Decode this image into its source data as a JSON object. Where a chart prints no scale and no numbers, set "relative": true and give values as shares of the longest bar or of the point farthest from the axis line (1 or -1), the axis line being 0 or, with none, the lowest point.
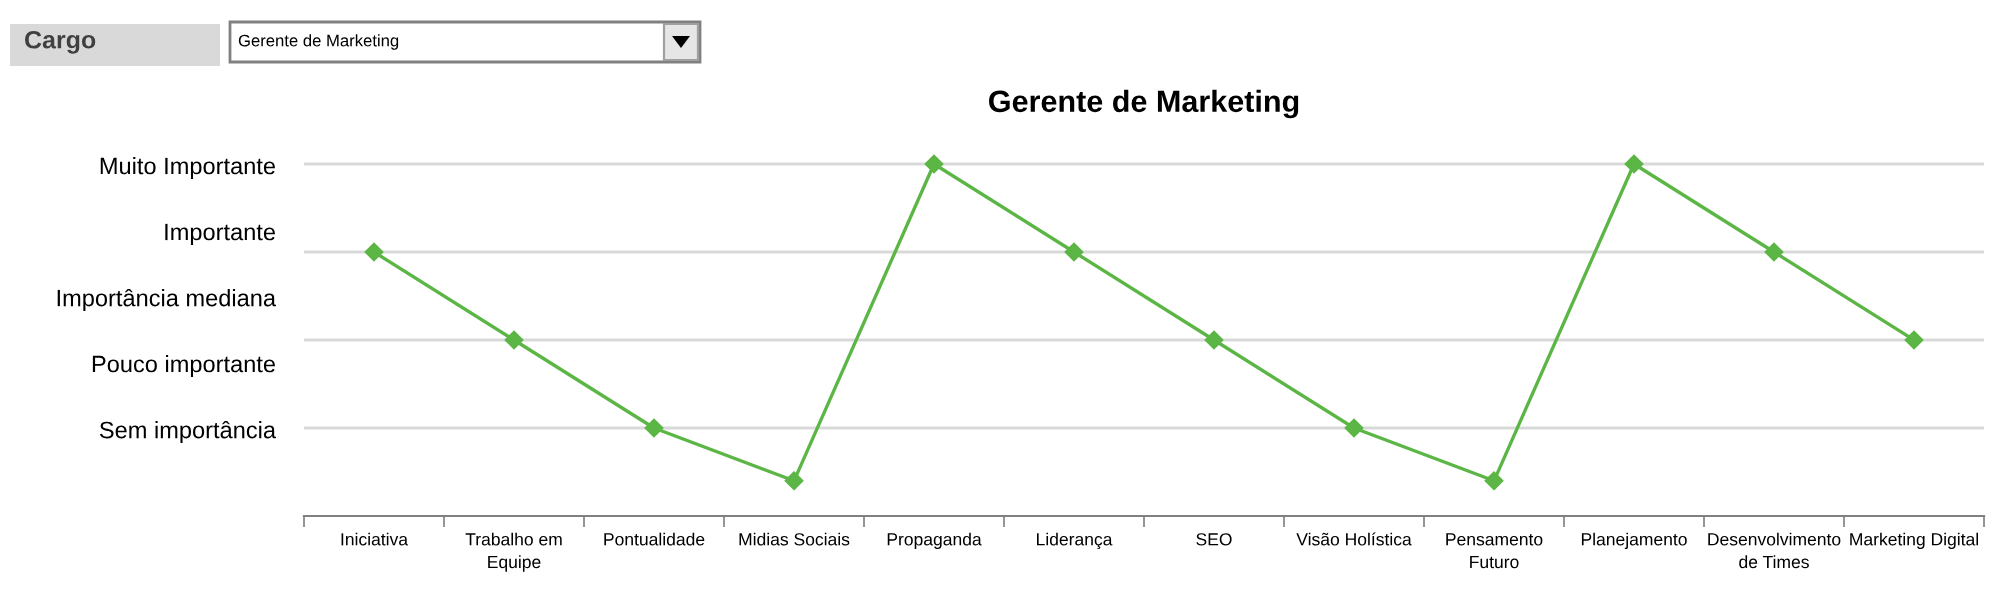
{
  "chart_data": {
    "type": "line",
    "title": "Gerente de Marketing",
    "relative": true,
    "categories": [
      "Iniciativa",
      "Trabalho em\nEquipe",
      "Pontualidade",
      "Midias Sociais",
      "Propaganda",
      "Liderança",
      "SEO",
      "Visão Holística",
      "Pensamento\nFuturo",
      "Planejamento",
      "Desenvolvimento\nde Times",
      "Marketing Digital"
    ],
    "series": [
      {
        "color": "#5bb645",
        "values": [
          0.75,
          0.5,
          0.25,
          0.1,
          1,
          0.75,
          0.5,
          0.25,
          0.1,
          1,
          0.75,
          0.5
        ]
      }
    ],
    "ref_lines": [
      {
        "axis": "y",
        "value": 0.25,
        "color": "#d9d9d9"
      },
      {
        "axis": "y",
        "value": 0.5,
        "color": "#d9d9d9"
      },
      {
        "axis": "y",
        "value": 0.75,
        "color": "#d9d9d9"
      },
      {
        "axis": "y",
        "value": 1,
        "color": "#d9d9d9"
      }
    ],
    "grid": false,
    "legend": false,
    "marker": "diamond",
    "line_style": "solid",
    "annotations": [
      "Cargo",
      "Gerente de Marketing",
      "Muito Importante",
      "Importante",
      "Importância mediana",
      "Pouco importante",
      "Sem importância"
    ]
  }
}
